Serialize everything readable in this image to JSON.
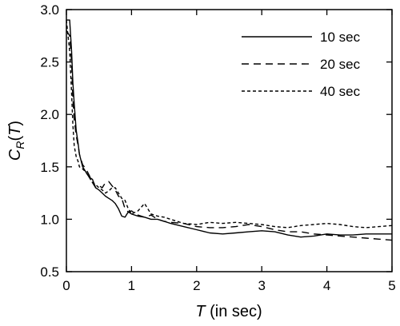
{
  "chart_data": {
    "type": "line",
    "xlabel_main": "T",
    "xlabel_rest": " (in sec)",
    "ylabel_main": "C",
    "ylabel_sub": "R",
    "ylabel_open": "(",
    "ylabel_var": "T",
    "ylabel_close": ")",
    "xlim": [
      0,
      5
    ],
    "ylim": [
      0.5,
      3.0
    ],
    "xticks": [
      0,
      1,
      2,
      3,
      4,
      5
    ],
    "yticks": [
      0.5,
      1.0,
      1.5,
      2.0,
      2.5,
      3.0
    ],
    "xtick_labels": [
      "0",
      "1",
      "2",
      "3",
      "4",
      "5"
    ],
    "ytick_labels": [
      "0.5",
      "1.0",
      "1.5",
      "2.0",
      "2.5",
      "3.0"
    ],
    "legend_position": "top-right",
    "series": [
      {
        "name": "10 sec",
        "dash": "solid",
        "x": [
          0.0,
          0.05,
          0.08,
          0.1,
          0.12,
          0.15,
          0.18,
          0.2,
          0.25,
          0.3,
          0.35,
          0.4,
          0.45,
          0.5,
          0.55,
          0.6,
          0.65,
          0.7,
          0.75,
          0.8,
          0.85,
          0.9,
          0.95,
          1.0,
          1.1,
          1.2,
          1.3,
          1.4,
          1.5,
          1.6,
          1.8,
          2.0,
          2.2,
          2.4,
          2.6,
          2.8,
          3.0,
          3.2,
          3.4,
          3.6,
          3.8,
          4.0,
          4.2,
          4.4,
          4.6,
          4.8,
          5.0
        ],
        "y": [
          2.9,
          2.9,
          2.6,
          2.3,
          2.1,
          1.85,
          1.72,
          1.62,
          1.5,
          1.45,
          1.4,
          1.38,
          1.3,
          1.28,
          1.25,
          1.22,
          1.2,
          1.18,
          1.15,
          1.1,
          1.03,
          1.02,
          1.07,
          1.05,
          1.03,
          1.02,
          1.0,
          1.0,
          0.98,
          0.96,
          0.93,
          0.9,
          0.87,
          0.86,
          0.87,
          0.88,
          0.89,
          0.88,
          0.85,
          0.83,
          0.84,
          0.86,
          0.85,
          0.85,
          0.86,
          0.86,
          0.86
        ]
      },
      {
        "name": "20 sec",
        "dash": "long-dash",
        "x": [
          0.0,
          0.05,
          0.08,
          0.1,
          0.12,
          0.15,
          0.18,
          0.2,
          0.25,
          0.3,
          0.35,
          0.4,
          0.45,
          0.5,
          0.55,
          0.6,
          0.65,
          0.7,
          0.75,
          0.8,
          0.85,
          0.9,
          0.95,
          1.0,
          1.1,
          1.2,
          1.3,
          1.4,
          1.5,
          1.6,
          1.8,
          2.0,
          2.2,
          2.4,
          2.6,
          2.8,
          3.0,
          3.2,
          3.4,
          3.6,
          3.8,
          4.0,
          4.2,
          4.4,
          4.6,
          4.8,
          5.0
        ],
        "y": [
          2.8,
          2.75,
          2.5,
          2.15,
          1.95,
          1.8,
          1.7,
          1.62,
          1.52,
          1.48,
          1.42,
          1.35,
          1.3,
          1.32,
          1.3,
          1.35,
          1.36,
          1.32,
          1.28,
          1.22,
          1.2,
          1.1,
          1.07,
          1.08,
          1.04,
          1.02,
          1.04,
          1.0,
          0.98,
          0.97,
          0.96,
          0.93,
          0.92,
          0.92,
          0.93,
          0.95,
          0.93,
          0.9,
          0.88,
          0.88,
          0.86,
          0.85,
          0.84,
          0.83,
          0.82,
          0.81,
          0.8
        ]
      },
      {
        "name": "40 sec",
        "dash": "short-dash",
        "x": [
          0.0,
          0.05,
          0.08,
          0.1,
          0.12,
          0.15,
          0.18,
          0.2,
          0.25,
          0.3,
          0.35,
          0.4,
          0.45,
          0.5,
          0.55,
          0.6,
          0.65,
          0.7,
          0.75,
          0.8,
          0.85,
          0.9,
          0.95,
          1.0,
          1.1,
          1.2,
          1.3,
          1.4,
          1.5,
          1.6,
          1.8,
          2.0,
          2.2,
          2.4,
          2.6,
          2.8,
          3.0,
          3.2,
          3.4,
          3.6,
          3.8,
          4.0,
          4.2,
          4.4,
          4.6,
          4.8,
          5.0
        ],
        "y": [
          2.9,
          2.6,
          2.2,
          1.9,
          1.7,
          1.6,
          1.55,
          1.5,
          1.48,
          1.45,
          1.4,
          1.35,
          1.33,
          1.3,
          1.28,
          1.25,
          1.27,
          1.3,
          1.3,
          1.25,
          1.2,
          1.18,
          1.1,
          1.05,
          1.08,
          1.15,
          1.05,
          1.03,
          1.02,
          1.0,
          0.96,
          0.95,
          0.97,
          0.96,
          0.97,
          0.96,
          0.95,
          0.93,
          0.92,
          0.94,
          0.95,
          0.96,
          0.95,
          0.93,
          0.92,
          0.93,
          0.94
        ]
      }
    ]
  }
}
